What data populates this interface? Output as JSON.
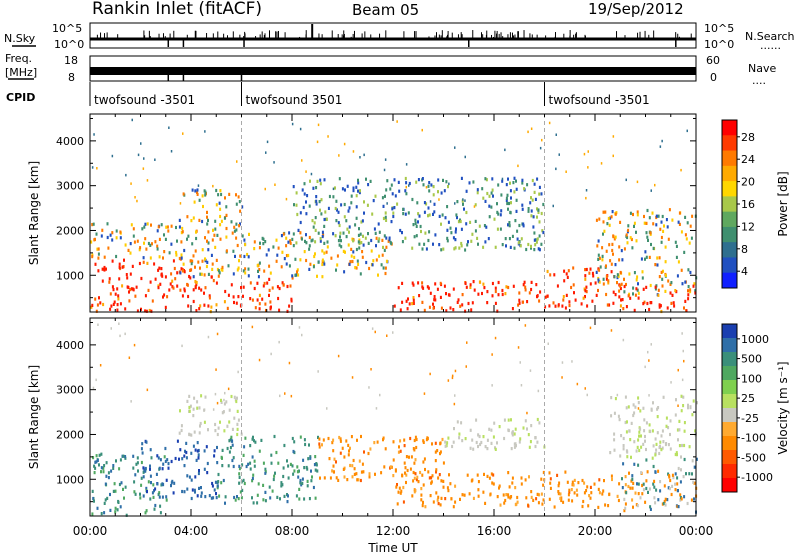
{
  "header": {
    "station": "Rankin Inlet (fitACF)",
    "beam": "Beam 05",
    "date": "19/Sep/2012"
  },
  "strip_labels": {
    "nsky": "N.Sky",
    "nsearch": "N.Search",
    "freq_line1": "Freq.",
    "freq_line2": "[MHz]",
    "nave": "Nave",
    "cpid": "CPID",
    "dots": "......",
    "dots_short": "....",
    "nsky_ticks": [
      "10^5",
      "10^0"
    ],
    "nsearch_ticks": [
      "10^5",
      "10^0"
    ],
    "freq_ticks": [
      "18",
      "8"
    ],
    "nave_ticks": [
      "60",
      "0"
    ]
  },
  "cpid_segments": [
    {
      "start_h": 0.0,
      "label": "twofsound -3501"
    },
    {
      "start_h": 6.0,
      "label": "twofsound 3501"
    },
    {
      "start_h": 18.0,
      "label": "twofsound -3501"
    }
  ],
  "chart_data": [
    {
      "type": "heatmap",
      "name": "power",
      "ylabel": "Slant Range [km]",
      "xlim_h": [
        0,
        24
      ],
      "ylim": [
        180,
        4600
      ],
      "yticks": [
        1000,
        2000,
        3000,
        4000
      ],
      "colorbar": {
        "label": "Power [dB]",
        "ticks": [
          "28",
          "24",
          "20",
          "16",
          "12",
          "8",
          "4"
        ],
        "colors": [
          "#ff0000",
          "#ff3a00",
          "#ff7a00",
          "#ffaa00",
          "#ffd700",
          "#a8c84a",
          "#5fa85f",
          "#3f8f6f",
          "#2e6f8f",
          "#2050c0",
          "#1020ff"
        ]
      },
      "scatter_regions": [
        {
          "t0": 0.0,
          "t1": 4.0,
          "r0": 200,
          "r1": 1400,
          "level": "high"
        },
        {
          "t0": 0.0,
          "t1": 4.0,
          "r0": 1400,
          "r1": 2200,
          "level": "mid"
        },
        {
          "t0": 3.5,
          "t1": 6.0,
          "r0": 1000,
          "r1": 3000,
          "level": "mid"
        },
        {
          "t0": 4.0,
          "t1": 8.0,
          "r0": 200,
          "r1": 1000,
          "level": "high"
        },
        {
          "t0": 6.0,
          "t1": 12.0,
          "r0": 1000,
          "r1": 2000,
          "level": "mid"
        },
        {
          "t0": 8.0,
          "t1": 18.0,
          "r0": 1600,
          "r1": 3200,
          "level": "low"
        },
        {
          "t0": 12.0,
          "t1": 18.0,
          "r0": 200,
          "r1": 900,
          "level": "high"
        },
        {
          "t0": 18.0,
          "t1": 21.0,
          "r0": 300,
          "r1": 1200,
          "level": "high"
        },
        {
          "t0": 20.0,
          "t1": 24.0,
          "r0": 600,
          "r1": 2500,
          "level": "mid"
        },
        {
          "t0": 21.0,
          "t1": 24.0,
          "r0": 200,
          "r1": 800,
          "level": "high"
        }
      ]
    },
    {
      "type": "heatmap",
      "name": "velocity",
      "ylabel": "Slant Range [km]",
      "xlabel": "Time UT",
      "xlim_h": [
        0,
        24
      ],
      "xticks": [
        "00:00",
        "04:00",
        "08:00",
        "12:00",
        "16:00",
        "20:00",
        "00:00"
      ],
      "ylim": [
        180,
        4600
      ],
      "yticks": [
        1000,
        2000,
        3000,
        4000
      ],
      "colorbar": {
        "label": "Velocity [m s⁻¹]",
        "ticks": [
          "1000",
          "500",
          "100",
          "25",
          "-25",
          "-100",
          "-500",
          "-1000"
        ],
        "colors": [
          "#1a3fb0",
          "#2f6fa8",
          "#3a8f7a",
          "#4fa860",
          "#7fd04f",
          "#b8e060",
          "#c8c8c0",
          "#ffaa30",
          "#ff8a00",
          "#ff5a00",
          "#ff2a00",
          "#ff0000"
        ]
      },
      "scatter_regions": [
        {
          "t0": 0.0,
          "t1": 3.0,
          "r0": 200,
          "r1": 1600,
          "level": "green"
        },
        {
          "t0": 2.0,
          "t1": 5.0,
          "r0": 600,
          "r1": 1900,
          "level": "blue"
        },
        {
          "t0": 3.5,
          "t1": 6.0,
          "r0": 2000,
          "r1": 2900,
          "level": "gray"
        },
        {
          "t0": 5.0,
          "t1": 9.0,
          "r0": 500,
          "r1": 2000,
          "level": "green"
        },
        {
          "t0": 9.0,
          "t1": 14.0,
          "r0": 1000,
          "r1": 2000,
          "level": "orange"
        },
        {
          "t0": 12.0,
          "t1": 18.0,
          "r0": 400,
          "r1": 1200,
          "level": "orange"
        },
        {
          "t0": 14.0,
          "t1": 18.0,
          "r0": 1700,
          "r1": 2400,
          "level": "gray"
        },
        {
          "t0": 18.0,
          "t1": 22.0,
          "r0": 400,
          "r1": 1200,
          "level": "orange"
        },
        {
          "t0": 20.5,
          "t1": 24.0,
          "r0": 1500,
          "r1": 2900,
          "level": "gray"
        },
        {
          "t0": 21.0,
          "t1": 24.0,
          "r0": 300,
          "r1": 1500,
          "level": "mixed"
        }
      ]
    }
  ]
}
